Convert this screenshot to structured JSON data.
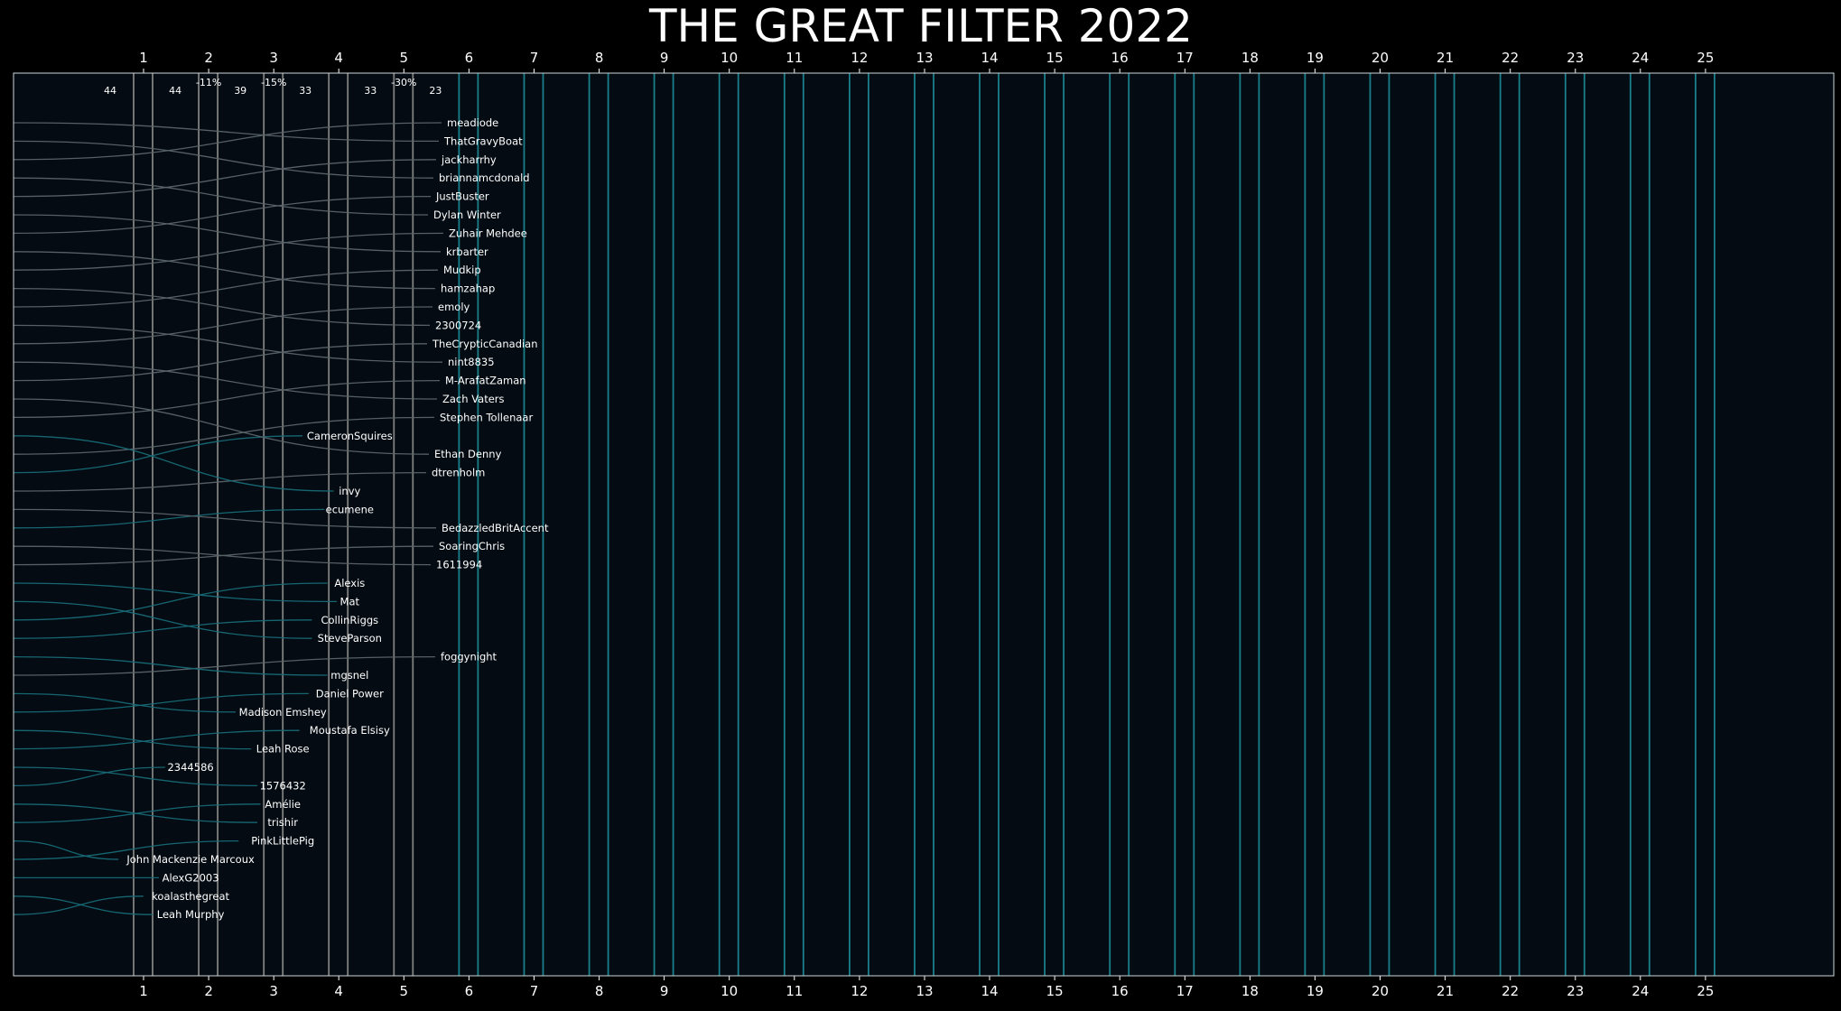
{
  "chart_data": {
    "type": "line",
    "title": "THE GREAT FILTER 2022",
    "x_ticks": [
      "1",
      "2",
      "3",
      "4",
      "5",
      "6",
      "7",
      "8",
      "9",
      "10",
      "11",
      "12",
      "13",
      "14",
      "15",
      "16",
      "17",
      "18",
      "19",
      "20",
      "21",
      "22",
      "23",
      "24",
      "25"
    ],
    "round_counts": [
      {
        "round": 1,
        "count": "44",
        "change": ""
      },
      {
        "round": 2,
        "count": "44",
        "change": "-11%"
      },
      {
        "round": 3,
        "count": "39",
        "change": "-15%"
      },
      {
        "round": 4,
        "count": "33",
        "change": ""
      },
      {
        "round": 5,
        "count": "33",
        "change": "-30%"
      },
      {
        "round": 6,
        "count": "23",
        "change": ""
      }
    ],
    "players": [
      {
        "name": "meadiode",
        "start_rank": 3,
        "end_rank": 1,
        "eliminated_round": 0
      },
      {
        "name": "ThatGravyBoat",
        "start_rank": 1,
        "end_rank": 2,
        "eliminated_round": 0
      },
      {
        "name": "jackharrhy",
        "start_rank": 5,
        "end_rank": 3,
        "eliminated_round": 0
      },
      {
        "name": "briannamcdonald",
        "start_rank": 2,
        "end_rank": 4,
        "eliminated_round": 0
      },
      {
        "name": "JustBuster",
        "start_rank": 7,
        "end_rank": 5,
        "eliminated_round": 0
      },
      {
        "name": "Dylan Winter",
        "start_rank": 4,
        "end_rank": 6,
        "eliminated_round": 0
      },
      {
        "name": "Zuhair Mehdee",
        "start_rank": 9,
        "end_rank": 7,
        "eliminated_round": 0
      },
      {
        "name": "krbarter",
        "start_rank": 6,
        "end_rank": 8,
        "eliminated_round": 0
      },
      {
        "name": "Mudkip",
        "start_rank": 11,
        "end_rank": 9,
        "eliminated_round": 0
      },
      {
        "name": "hamzahap",
        "start_rank": 8,
        "end_rank": 10,
        "eliminated_round": 0
      },
      {
        "name": "emoly",
        "start_rank": 13,
        "end_rank": 11,
        "eliminated_round": 0
      },
      {
        "name": "2300724",
        "start_rank": 10,
        "end_rank": 12,
        "eliminated_round": 0
      },
      {
        "name": "TheCrypticCanadian",
        "start_rank": 15,
        "end_rank": 13,
        "eliminated_round": 0
      },
      {
        "name": "nint8835",
        "start_rank": 12,
        "end_rank": 14,
        "eliminated_round": 0
      },
      {
        "name": "M-ArafatZaman",
        "start_rank": 17,
        "end_rank": 15,
        "eliminated_round": 0
      },
      {
        "name": "Zach Vaters",
        "start_rank": 14,
        "end_rank": 16,
        "eliminated_round": 0
      },
      {
        "name": "Stephen Tollenaar",
        "start_rank": 19,
        "end_rank": 17,
        "eliminated_round": 0
      },
      {
        "name": "CameronSquires",
        "start_rank": 20,
        "end_rank": 18,
        "eliminated_round": 5
      },
      {
        "name": "Ethan Denny",
        "start_rank": 16,
        "end_rank": 19,
        "eliminated_round": 0
      },
      {
        "name": "dtrenholm",
        "start_rank": 21,
        "end_rank": 20,
        "eliminated_round": 0
      },
      {
        "name": "invy",
        "start_rank": 18,
        "end_rank": 21,
        "eliminated_round": 5
      },
      {
        "name": "ecumene",
        "start_rank": 23,
        "end_rank": 22,
        "eliminated_round": 5
      },
      {
        "name": "BedazzledBritAccent",
        "start_rank": 22,
        "end_rank": 23,
        "eliminated_round": 0
      },
      {
        "name": "SoaringChris",
        "start_rank": 25,
        "end_rank": 24,
        "eliminated_round": 0
      },
      {
        "name": "1611994",
        "start_rank": 24,
        "end_rank": 25,
        "eliminated_round": 0
      },
      {
        "name": "Alexis",
        "start_rank": 28,
        "end_rank": 26,
        "eliminated_round": 5
      },
      {
        "name": "Mat",
        "start_rank": 26,
        "end_rank": 27,
        "eliminated_round": 5
      },
      {
        "name": "CollinRiggs",
        "start_rank": 29,
        "end_rank": 28,
        "eliminated_round": 5
      },
      {
        "name": "SteveParson",
        "start_rank": 27,
        "end_rank": 29,
        "eliminated_round": 5
      },
      {
        "name": "foggynight",
        "start_rank": 31,
        "end_rank": 30,
        "eliminated_round": 0
      },
      {
        "name": "mgsnel",
        "start_rank": 30,
        "end_rank": 31,
        "eliminated_round": 5
      },
      {
        "name": "Daniel Power",
        "start_rank": 33,
        "end_rank": 32,
        "eliminated_round": 5
      },
      {
        "name": "Madison Emshey",
        "start_rank": 32,
        "end_rank": 33,
        "eliminated_round": 3
      },
      {
        "name": "Moustafa Elsisy",
        "start_rank": 35,
        "end_rank": 34,
        "eliminated_round": 5
      },
      {
        "name": "Leah Rose",
        "start_rank": 34,
        "end_rank": 35,
        "eliminated_round": 3
      },
      {
        "name": "2344586",
        "start_rank": 37,
        "end_rank": 36,
        "eliminated_round": 2
      },
      {
        "name": "1576432",
        "start_rank": 36,
        "end_rank": 37,
        "eliminated_round": 3
      },
      {
        "name": "Amélie",
        "start_rank": 39,
        "end_rank": 38,
        "eliminated_round": 3
      },
      {
        "name": "trishir",
        "start_rank": 38,
        "end_rank": 39,
        "eliminated_round": 3
      },
      {
        "name": "PinkLittlePig",
        "start_rank": 41,
        "end_rank": 40,
        "eliminated_round": 3
      },
      {
        "name": "John Mackenzie Marcoux",
        "start_rank": 40,
        "end_rank": 41,
        "eliminated_round": 2
      },
      {
        "name": "AlexG2003",
        "start_rank": 42,
        "end_rank": 42,
        "eliminated_round": 2
      },
      {
        "name": "koalasthegreat",
        "start_rank": 44,
        "end_rank": 43,
        "eliminated_round": 2
      },
      {
        "name": "Leah Murphy",
        "start_rank": 43,
        "end_rank": 44,
        "eliminated_round": 2
      }
    ],
    "colors": {
      "background": "#000000",
      "plot_background": "#040b12",
      "frame": "#cfd6dc",
      "grey_line": "#808080",
      "teal_line": "#1a7f8a",
      "player_grey": "#5b646c",
      "player_teal": "#176b78",
      "text": "#ffffff"
    }
  }
}
